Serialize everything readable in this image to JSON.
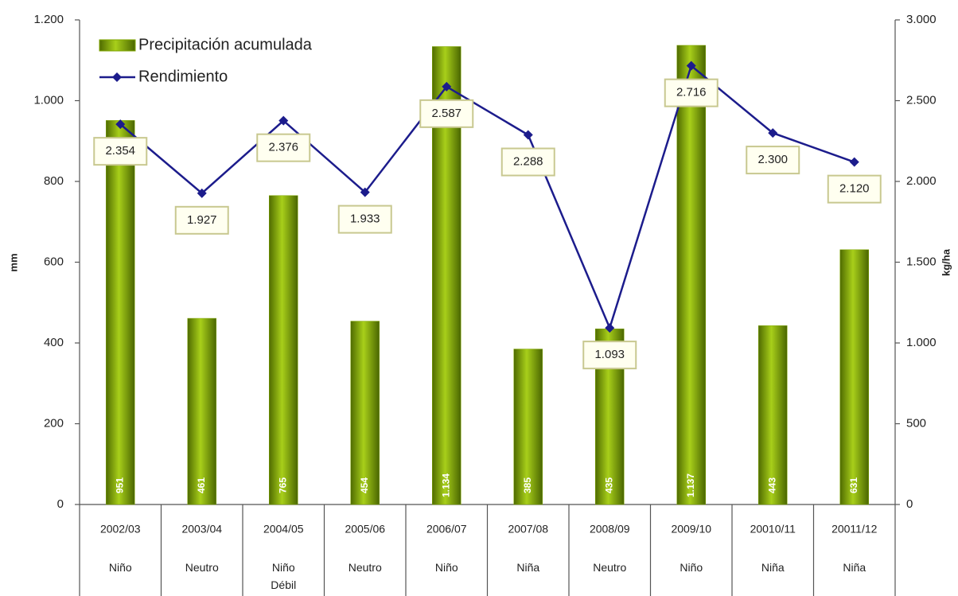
{
  "chart_data": {
    "type": "bar_line",
    "categories": [
      "2002/03",
      "2003/04",
      "2004/05",
      "2005/06",
      "2006/07",
      "2007/08",
      "2008/09",
      "2009/10",
      "20010/11",
      "20011/12"
    ],
    "category_sublabels": [
      "Niño",
      "Neutro",
      "Niño Débil",
      "Neutro",
      "Niño",
      "Niña",
      "Neutro",
      "Niño",
      "Niña",
      "Niña"
    ],
    "series": [
      {
        "name": "Precipitación acumulada",
        "type": "bar",
        "color": "#7fa600",
        "values": [
          951,
          461,
          765,
          454,
          1134,
          385,
          435,
          1137,
          443,
          631
        ],
        "value_labels": [
          "951",
          "461",
          "765",
          "454",
          "1.134",
          "385",
          "435",
          "1.137",
          "443",
          "631"
        ]
      },
      {
        "name": "Rendimiento",
        "type": "line",
        "axis": "y2",
        "color": "#1c1c8c",
        "values": [
          2354,
          1927,
          2376,
          1933,
          2587,
          2288,
          1093,
          2716,
          2300,
          2120
        ],
        "value_labels": [
          "2.354",
          "1.927",
          "2.376",
          "1.933",
          "2.587",
          "2.288",
          "1.093",
          "2.716",
          "2.300",
          "2.120"
        ]
      }
    ],
    "ylabel": "mm",
    "y2label": "kg/ha",
    "ylim": [
      0,
      1200
    ],
    "yticks": [
      0,
      200,
      400,
      600,
      800,
      {
        "value": 1000,
        "label": "1.000"
      },
      {
        "value": 1200,
        "label": "1.200"
      }
    ],
    "y2lim": [
      0,
      3000
    ],
    "y2ticks": [
      0,
      500,
      {
        "value": 1000,
        "label": "1.000"
      },
      {
        "value": 1500,
        "label": "1.500"
      },
      {
        "value": 2000,
        "label": "2.000"
      },
      {
        "value": 2500,
        "label": "2.500"
      },
      {
        "value": 3000,
        "label": "3.000"
      }
    ],
    "legend": "upper left"
  }
}
